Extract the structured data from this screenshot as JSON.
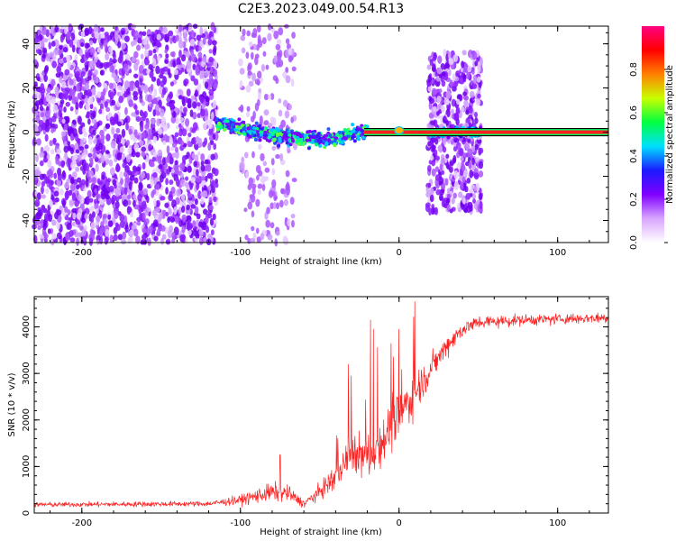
{
  "title": "C2E3.2023.049.00.54.R13",
  "chart_data": [
    {
      "type": "heatmap",
      "xlabel": "Height of straight line (km)",
      "ylabel": "Frequency (Hz)",
      "xlim": [
        -230,
        132
      ],
      "ylim": [
        -50,
        48
      ],
      "xticks": [
        -200,
        -100,
        0,
        100
      ],
      "yticks": [
        -40,
        -20,
        0,
        20,
        40
      ],
      "colorbar": {
        "label": "Normalized spectral amplitude",
        "range": [
          0,
          1
        ],
        "ticks": [
          0.0,
          0.2,
          0.4,
          0.6,
          0.8
        ],
        "colors": [
          "#ffffff",
          "#d9a6ff",
          "#7f00ff",
          "#1a1aff",
          "#00e0ff",
          "#00ff40",
          "#c8ff00",
          "#ff8000",
          "#ff0000",
          "#ff0080"
        ]
      },
      "features": {
        "noise_regions_x": [
          [
            -230,
            -115
          ],
          [
            -100,
            -65
          ],
          [
            18,
            52
          ]
        ],
        "signal_band_center_hz": [
          {
            "x": -115,
            "y": 4
          },
          {
            "x": -100,
            "y": 2
          },
          {
            "x": -85,
            "y": -1
          },
          {
            "x": -70,
            "y": -2
          },
          {
            "x": -55,
            "y": -3
          },
          {
            "x": -40,
            "y": -3
          },
          {
            "x": -25,
            "y": 0
          },
          {
            "x": 0,
            "y": 1
          },
          {
            "x": 50,
            "y": 0
          },
          {
            "x": 132,
            "y": 0
          }
        ]
      }
    },
    {
      "type": "line",
      "xlabel": "Height of straight line (km)",
      "ylabel": "SNR (10 * v/v)",
      "xlim": [
        -230,
        132
      ],
      "ylim": [
        0,
        4650
      ],
      "xticks": [
        -200,
        -100,
        0,
        100
      ],
      "yticks": [
        0,
        1000,
        2000,
        3000,
        4000
      ],
      "color": "#ff2020",
      "series_envelope": [
        {
          "x": -230,
          "mean": 180,
          "noise": 90
        },
        {
          "x": -120,
          "mean": 200,
          "noise": 100
        },
        {
          "x": -100,
          "mean": 280,
          "noise": 180
        },
        {
          "x": -80,
          "mean": 450,
          "noise": 350
        },
        {
          "x": -70,
          "mean": 420,
          "noise": 300
        },
        {
          "x": -60,
          "mean": 200,
          "noise": 150
        },
        {
          "x": -50,
          "mean": 450,
          "noise": 300
        },
        {
          "x": -40,
          "mean": 800,
          "noise": 500
        },
        {
          "x": -30,
          "mean": 1300,
          "noise": 700
        },
        {
          "x": -20,
          "mean": 1200,
          "noise": 900
        },
        {
          "x": -10,
          "mean": 1600,
          "noise": 900
        },
        {
          "x": 0,
          "mean": 2100,
          "noise": 900
        },
        {
          "x": 10,
          "mean": 2600,
          "noise": 800
        },
        {
          "x": 20,
          "mean": 3100,
          "noise": 500
        },
        {
          "x": 30,
          "mean": 3600,
          "noise": 400
        },
        {
          "x": 40,
          "mean": 3950,
          "noise": 300
        },
        {
          "x": 50,
          "mean": 4100,
          "noise": 250
        },
        {
          "x": 80,
          "mean": 4150,
          "noise": 200
        },
        {
          "x": 132,
          "mean": 4200,
          "noise": 200
        }
      ],
      "peaks": [
        {
          "x": 10,
          "y": 4550
        },
        {
          "x": -18,
          "y": 4150
        },
        {
          "x": -32,
          "y": 3200
        },
        {
          "x": -5,
          "y": 3650
        },
        {
          "x": -75,
          "y": 1250
        }
      ]
    }
  ]
}
